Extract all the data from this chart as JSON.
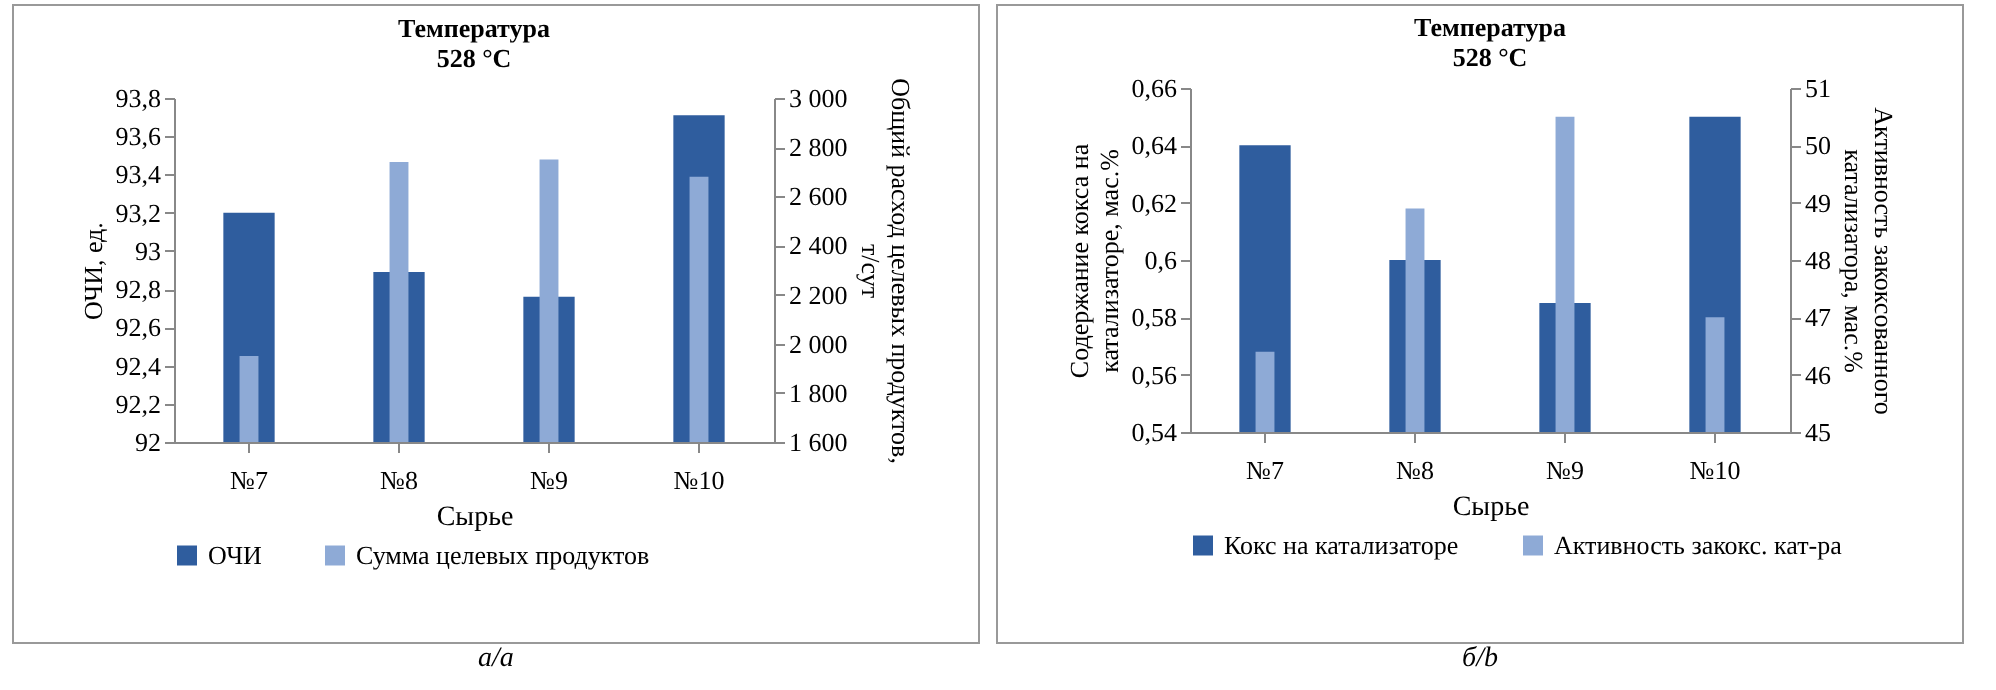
{
  "chart_data": [
    {
      "type": "bar",
      "title": "Температура 528 °C",
      "xlabel": "Сырье",
      "ylabel": "ОЧИ, ед.",
      "y2label": "Общий расход целевых продуктов, т/сут",
      "categories": [
        "№7",
        "№8",
        "№9",
        "№10"
      ],
      "series": [
        {
          "name": "ОЧИ",
          "color": "#2f5d9e",
          "values": [
            93.2,
            92.89,
            92.76,
            93.71
          ]
        },
        {
          "name": "Сумма целевых продуктов",
          "color": "#8eaad6",
          "axis": "y2",
          "values": [
            1950,
            2740,
            2750,
            2680
          ]
        }
      ],
      "ylim": [
        92,
        93.8
      ],
      "yticks": [
        92,
        {
          "value": 92.2,
          "label": "92,2"
        },
        {
          "value": 92.4,
          "label": "92,4"
        },
        {
          "value": 92.6,
          "label": "92,6"
        },
        {
          "value": 92.8,
          "label": "92,8"
        },
        93,
        {
          "value": 93.2,
          "label": "93,2"
        },
        {
          "value": 93.4,
          "label": "93,4"
        },
        {
          "value": 93.6,
          "label": "93,6"
        },
        {
          "value": 93.8,
          "label": "93,8"
        }
      ],
      "y2lim": [
        1600,
        3000
      ],
      "y2ticks": [
        {
          "value": 1600,
          "label": "1 600"
        },
        {
          "value": 1800,
          "label": "1 800"
        },
        {
          "value": 2000,
          "label": "2 000"
        },
        {
          "value": 2200,
          "label": "2 200"
        },
        {
          "value": 2400,
          "label": "2 400"
        },
        {
          "value": 2600,
          "label": "2 600"
        },
        {
          "value": 2800,
          "label": "2 800"
        },
        {
          "value": 3000,
          "label": "3 000"
        }
      ],
      "legend": "bottom",
      "annotations": [
        "а/a"
      ]
    },
    {
      "type": "bar",
      "title": "Температура 528 °C",
      "xlabel": "Сырье",
      "ylabel": "Содержание кокса на катализаторе, мас.%",
      "y2label": "Активность закоксованного катализатора, мас.%",
      "categories": [
        "№7",
        "№8",
        "№9",
        "№10"
      ],
      "series": [
        {
          "name": "Кокс на катализаторе",
          "color": "#2f5d9e",
          "values": [
            0.64,
            0.6,
            0.585,
            0.65
          ]
        },
        {
          "name": "Активность закокс. кат-ра",
          "color": "#8eaad6",
          "axis": "y2",
          "values": [
            46.4,
            48.9,
            50.5,
            47.0
          ]
        }
      ],
      "ylim": [
        0.54,
        0.66
      ],
      "yticks": [
        {
          "value": 0.54,
          "label": "0,54"
        },
        {
          "value": 0.56,
          "label": "0,56"
        },
        {
          "value": 0.58,
          "label": "0,58"
        },
        {
          "value": 0.6,
          "label": "0,6"
        },
        {
          "value": 0.62,
          "label": "0,62"
        },
        {
          "value": 0.64,
          "label": "0,64"
        },
        {
          "value": 0.66,
          "label": "0,66"
        }
      ],
      "y2lim": [
        45,
        51
      ],
      "y2ticks": [
        45,
        46,
        47,
        48,
        49,
        50,
        51
      ],
      "legend": "bottom",
      "annotations": [
        "б/b"
      ]
    }
  ]
}
